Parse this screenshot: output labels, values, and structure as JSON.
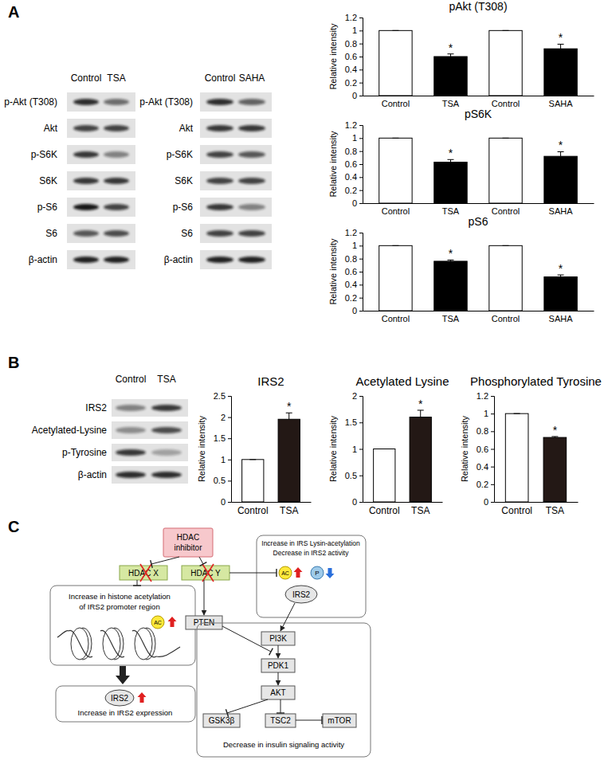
{
  "panel_labels": [
    "A",
    "B",
    "C"
  ],
  "blots": [
    {
      "columns": [
        "Control",
        "TSA"
      ],
      "rows": [
        {
          "label": "p-Akt (T308)",
          "bands": [
            0.85,
            0.55
          ]
        },
        {
          "label": "Akt",
          "bands": [
            0.75,
            0.75
          ]
        },
        {
          "label": "p-S6K",
          "bands": [
            0.8,
            0.45
          ]
        },
        {
          "label": "S6K",
          "bands": [
            0.8,
            0.8
          ]
        },
        {
          "label": "p-S6",
          "bands": [
            0.95,
            0.75
          ]
        },
        {
          "label": "S6",
          "bands": [
            0.65,
            0.7
          ]
        },
        {
          "label": "β-actin",
          "bands": [
            0.9,
            0.9
          ]
        }
      ]
    },
    {
      "columns": [
        "Control",
        "SAHA"
      ],
      "rows": [
        {
          "label": "p-Akt (T308)",
          "bands": [
            0.85,
            0.6
          ]
        },
        {
          "label": "Akt",
          "bands": [
            0.8,
            0.8
          ]
        },
        {
          "label": "p-S6K",
          "bands": [
            0.75,
            0.65
          ]
        },
        {
          "label": "S6K",
          "bands": [
            0.75,
            0.75
          ]
        },
        {
          "label": "p-S6",
          "bands": [
            0.8,
            0.45
          ]
        },
        {
          "label": "S6",
          "bands": [
            0.75,
            0.75
          ]
        },
        {
          "label": "β-actin",
          "bands": [
            0.9,
            0.9
          ]
        }
      ]
    },
    {
      "columns": [
        "Control",
        "TSA"
      ],
      "rows": [
        {
          "label": "IRS2",
          "bands": [
            0.45,
            0.8
          ]
        },
        {
          "label": "Acetylated-Lysine",
          "bands": [
            0.4,
            0.7
          ]
        },
        {
          "label": "p-Tyrosine",
          "bands": [
            0.8,
            0.3
          ]
        },
        {
          "label": "β-actin",
          "bands": [
            0.85,
            0.85
          ]
        }
      ]
    }
  ],
  "chart_data": [
    {
      "type": "bar",
      "title": "pAkt (T308)",
      "ylabel": "Relative intensity",
      "categories": [
        "Control",
        "TSA",
        "Control",
        "SAHA"
      ],
      "values": [
        1,
        0.6,
        1,
        0.72
      ],
      "errors": [
        0,
        0.04,
        0,
        0.07
      ],
      "colors": [
        "#ffffff",
        "#000000",
        "#ffffff",
        "#000000"
      ],
      "ylim": [
        0,
        1.2
      ],
      "yticks": [
        0,
        0.2,
        0.4,
        0.6,
        0.8,
        1,
        1.2
      ],
      "annotations": [
        {
          "category": 1,
          "text": "*"
        },
        {
          "category": 3,
          "text": "*"
        }
      ]
    },
    {
      "type": "bar",
      "title": "pS6K",
      "ylabel": "Relative intensity",
      "categories": [
        "Control",
        "TSA",
        "Control",
        "SAHA"
      ],
      "values": [
        1,
        0.63,
        1,
        0.72
      ],
      "errors": [
        0,
        0.04,
        0,
        0.07
      ],
      "colors": [
        "#ffffff",
        "#000000",
        "#ffffff",
        "#000000"
      ],
      "ylim": [
        0,
        1.2
      ],
      "yticks": [
        0,
        0.2,
        0.4,
        0.6,
        0.8,
        1,
        1.2
      ],
      "annotations": [
        {
          "category": 1,
          "text": "*"
        },
        {
          "category": 3,
          "text": "*"
        }
      ]
    },
    {
      "type": "bar",
      "title": "pS6",
      "ylabel": "Relative intensity",
      "categories": [
        "Control",
        "TSA",
        "Control",
        "SAHA"
      ],
      "values": [
        1,
        0.76,
        1,
        0.52
      ],
      "errors": [
        0,
        0.02,
        0,
        0.03
      ],
      "colors": [
        "#ffffff",
        "#000000",
        "#ffffff",
        "#000000"
      ],
      "ylim": [
        0,
        1.2
      ],
      "yticks": [
        0,
        0.2,
        0.4,
        0.6,
        0.8,
        1,
        1.2
      ],
      "annotations": [
        {
          "category": 1,
          "text": "*"
        },
        {
          "category": 3,
          "text": "*"
        }
      ]
    },
    {
      "type": "bar",
      "title": "IRS2",
      "ylabel": "Relative intensity",
      "categories": [
        "Control",
        "TSA"
      ],
      "values": [
        1,
        1.95
      ],
      "errors": [
        0,
        0.15
      ],
      "colors": [
        "#ffffff",
        "#231815"
      ],
      "ylim": [
        0,
        2.5
      ],
      "yticks": [
        0,
        0.5,
        1,
        1.5,
        2,
        2.5
      ],
      "annotations": [
        {
          "category": 1,
          "text": "*"
        }
      ]
    },
    {
      "type": "bar",
      "title": "Acetylated Lysine",
      "ylabel": "Relative intensity",
      "categories": [
        "Control",
        "TSA"
      ],
      "values": [
        1,
        1.6
      ],
      "errors": [
        0,
        0.13
      ],
      "colors": [
        "#ffffff",
        "#231815"
      ],
      "ylim": [
        0,
        2
      ],
      "yticks": [
        0,
        0.5,
        1,
        1.5,
        2
      ],
      "annotations": [
        {
          "category": 1,
          "text": "*"
        }
      ]
    },
    {
      "type": "bar",
      "title": "Phosphorylated Tyrosine",
      "ylabel": "Relative intensity",
      "categories": [
        "Control",
        "TSA"
      ],
      "values": [
        1,
        0.73
      ],
      "errors": [
        0,
        0.01
      ],
      "colors": [
        "#ffffff",
        "#231815"
      ],
      "ylim": [
        0,
        1.2
      ],
      "yticks": [
        0,
        0.2,
        0.4,
        0.6,
        0.8,
        1,
        1.2
      ],
      "annotations": [
        {
          "category": 1,
          "text": "*"
        }
      ]
    }
  ],
  "diagram": {
    "inhibitor": [
      "HDAC",
      "inhibitor"
    ],
    "hdacs": [
      "HDAC X",
      "HDAC Y"
    ],
    "histone_box": {
      "lines": [
        "Increase in histone acetylation",
        "of IRS2 promoter region"
      ],
      "mark": "AC"
    },
    "expression_box": {
      "protein": "IRS2",
      "caption": "Increase in IRS2 expression"
    },
    "irs_box": {
      "lines": [
        "Increase in IRS Lysin-acetylation",
        "Decrease in IRS2 activity"
      ],
      "acetyl": "AC",
      "phospho": "P",
      "protein": "IRS2"
    },
    "pten": "PTEN",
    "pathway": [
      "PI3K",
      "PDK1",
      "AKT"
    ],
    "targets": [
      "GSK3β",
      "TSC2",
      "mTOR"
    ],
    "signaling_caption": "Decrease in insulin signaling activity"
  }
}
